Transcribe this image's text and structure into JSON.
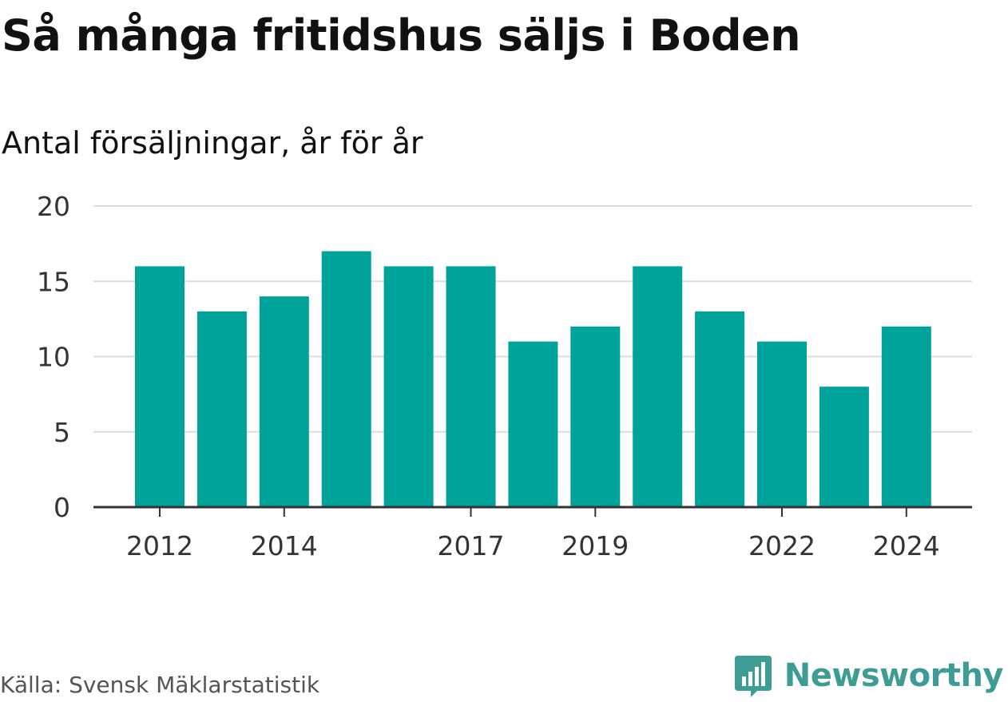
{
  "header": {
    "title": "Så många fritidshus säljs i Boden",
    "subtitle": "Antal försäljningar, år för år"
  },
  "footer": {
    "source": "Källa: Svensk Mäklarstatistik",
    "brand": "Newsworthy"
  },
  "colors": {
    "bar": "#00a39a",
    "grid": "#dcdcdc",
    "axis": "#333333",
    "brand": "#3d9c94"
  },
  "chart_data": {
    "type": "bar",
    "title": "Så många fritidshus säljs i Boden",
    "subtitle": "Antal försäljningar, år för år",
    "categories": [
      "2012",
      "2013",
      "2014",
      "2015",
      "2016",
      "2017",
      "2018",
      "2019",
      "2020",
      "2021",
      "2022",
      "2023",
      "2024"
    ],
    "values": [
      16,
      13,
      14,
      17,
      16,
      16,
      11,
      12,
      16,
      13,
      11,
      8,
      12
    ],
    "x_tick_labels": [
      "2012",
      "2014",
      "2017",
      "2019",
      "2022",
      "2024"
    ],
    "y_ticks": [
      0,
      5,
      10,
      15,
      20
    ],
    "ylim": [
      0,
      20
    ],
    "xlabel": "",
    "ylabel": "",
    "grid": true,
    "legend": "none"
  }
}
